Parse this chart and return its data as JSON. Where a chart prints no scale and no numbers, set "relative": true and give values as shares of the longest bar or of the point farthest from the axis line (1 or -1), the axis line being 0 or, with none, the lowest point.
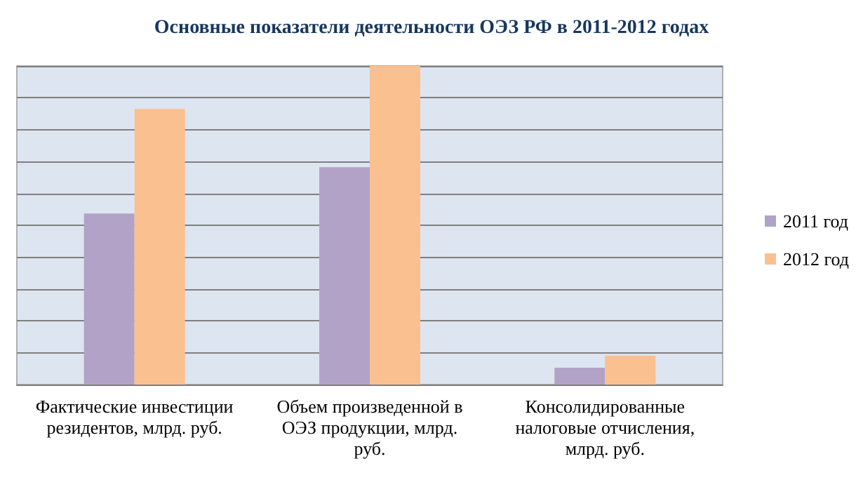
{
  "chart_data": {
    "type": "bar",
    "title": "Основные показатели деятельности ОЭЗ РФ в 2011-2012 годах",
    "categories": [
      "Фактические инвестиции резидентов, млрд. руб.",
      "Объем произведенной в ОЭЗ продукции, млрд. руб.",
      "Консолидированные налоговые отчисления, млрд. руб."
    ],
    "series": [
      {
        "name": "2011 год",
        "color": "#b3a2c7",
        "values": [
          0.537,
          0.682,
          0.053
        ]
      },
      {
        "name": "2012 год",
        "color": "#fac090",
        "values": [
          0.865,
          1,
          0.091
        ]
      }
    ],
    "relative": true,
    "grid": "y",
    "legend": "right"
  }
}
